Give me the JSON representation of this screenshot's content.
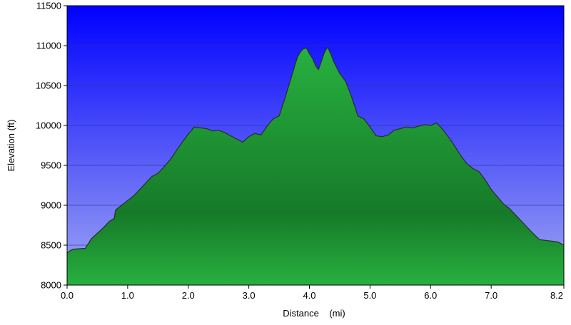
{
  "chart_data": {
    "type": "area",
    "xlabel": "Distance    (mi)",
    "ylabel": "Elevation (ft)",
    "xlim": [
      0,
      8.2
    ],
    "ylim": [
      8000,
      11500
    ],
    "x_ticks": [
      "0.0",
      "1.0",
      "2.0",
      "3.0",
      "4.0",
      "5.0",
      "6.0",
      "7.0",
      "8.2"
    ],
    "x_tick_values": [
      0,
      1,
      2,
      3,
      4,
      5,
      6,
      7,
      8.2
    ],
    "y_ticks": [
      "8000",
      "8500",
      "9000",
      "9500",
      "10000",
      "10500",
      "11000",
      "11500"
    ],
    "y_tick_values": [
      8000,
      8500,
      9000,
      9500,
      10000,
      10500,
      11000,
      11500
    ],
    "grid": true,
    "colors": {
      "sky_top": "#0000ff",
      "sky_bottom": "#a0a8f2",
      "fill_light": "#28b040",
      "fill_dark": "#167a28",
      "outline": "#2b2b2b"
    },
    "series": [
      {
        "x": [
          0.0,
          0.05,
          0.1,
          0.3,
          0.4,
          0.5,
          0.6,
          0.7,
          0.75,
          0.78,
          0.8,
          0.9,
          1.0,
          1.1,
          1.2,
          1.3,
          1.4,
          1.5,
          1.6,
          1.7,
          1.8,
          1.9,
          2.0,
          2.1,
          2.2,
          2.3,
          2.4,
          2.5,
          2.6,
          2.7,
          2.8,
          2.9,
          3.0,
          3.1,
          3.2,
          3.3,
          3.4,
          3.5,
          3.6,
          3.7,
          3.8,
          3.85,
          3.9,
          3.95,
          4.0,
          4.05,
          4.1,
          4.15,
          4.2,
          4.25,
          4.3,
          4.35,
          4.4,
          4.5,
          4.6,
          4.7,
          4.8,
          4.9,
          5.0,
          5.1,
          5.2,
          5.3,
          5.4,
          5.5,
          5.6,
          5.7,
          5.8,
          5.9,
          6.0,
          6.1,
          6.2,
          6.3,
          6.4,
          6.5,
          6.6,
          6.7,
          6.8,
          6.9,
          7.0,
          7.1,
          7.2,
          7.3,
          7.4,
          7.5,
          7.6,
          7.7,
          7.8,
          7.9,
          8.0,
          8.1,
          8.2
        ],
        "y": [
          8400,
          8430,
          8450,
          8460,
          8580,
          8650,
          8720,
          8800,
          8820,
          8840,
          8940,
          9000,
          9060,
          9120,
          9200,
          9280,
          9360,
          9400,
          9480,
          9570,
          9680,
          9790,
          9890,
          9980,
          9970,
          9960,
          9930,
          9940,
          9910,
          9870,
          9830,
          9790,
          9860,
          9900,
          9880,
          9990,
          10080,
          10120,
          10350,
          10600,
          10850,
          10920,
          10960,
          10970,
          10900,
          10840,
          10750,
          10700,
          10810,
          10920,
          10980,
          10900,
          10800,
          10650,
          10550,
          10350,
          10120,
          10080,
          9980,
          9870,
          9860,
          9880,
          9940,
          9960,
          9980,
          9970,
          9990,
          10010,
          10000,
          10030,
          9950,
          9850,
          9740,
          9620,
          9520,
          9460,
          9420,
          9320,
          9200,
          9110,
          9020,
          8960,
          8880,
          8800,
          8720,
          8640,
          8570,
          8560,
          8550,
          8540,
          8500
        ]
      }
    ]
  }
}
